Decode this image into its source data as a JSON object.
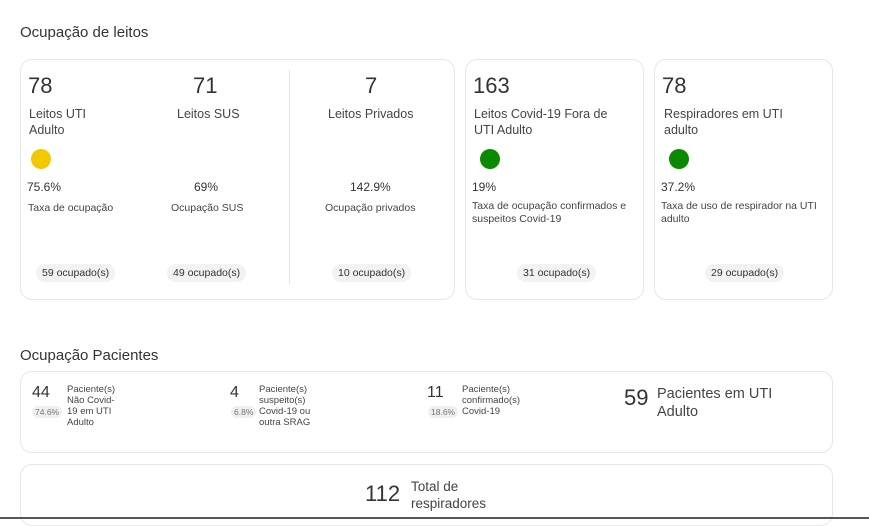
{
  "leitos": {
    "title": "Ocupação de leitos",
    "uti": {
      "number": "78",
      "label": "Leitos UTI Adulto",
      "status_color": "#f2c800",
      "percent": "75.6%",
      "percent_label": "Taxa de ocupação",
      "occupied": "59 ocupado(s)"
    },
    "sus": {
      "number": "71",
      "label": "Leitos SUS",
      "percent": "69%",
      "percent_label": "Ocupação SUS",
      "occupied": "49 ocupado(s)"
    },
    "privados": {
      "number": "7",
      "label": "Leitos Privados",
      "percent": "142.9%",
      "percent_label": "Ocupação privados",
      "occupied": "10 ocupado(s)"
    },
    "covid": {
      "number": "163",
      "label": "Leitos Covid-19 Fora de UTI Adulto",
      "status_color": "#0a8a00",
      "percent": "19%",
      "percent_label": "Taxa de ocupação confirmados e suspeitos Covid-19",
      "occupied": "31 ocupado(s)"
    },
    "respiradores": {
      "number": "78",
      "label": "Respiradores em UTI adulto",
      "status_color": "#0a8a00",
      "percent": "37.2%",
      "percent_label": "Taxa de uso de respirador na UTI adulto",
      "occupied": "29 ocupado(s)"
    }
  },
  "pacientes": {
    "title": "Ocupação Pacientes",
    "nao_covid": {
      "number": "44",
      "percent": "74.6%",
      "label": "Paciente(s) Não Covid-19 em UTI Adulto"
    },
    "suspeito": {
      "number": "4",
      "percent": "6.8%",
      "label": "Paciente(s) suspeito(s) Covid-19 ou outra SRAG"
    },
    "confirmado": {
      "number": "11",
      "percent": "18.6%",
      "label": "Paciente(s) confirmado(s) Covid-19"
    },
    "total": {
      "number": "59",
      "label": "Pacientes em UTI Adulto"
    }
  },
  "respiradores_total": {
    "number": "112",
    "label": "Total de respiradores"
  }
}
